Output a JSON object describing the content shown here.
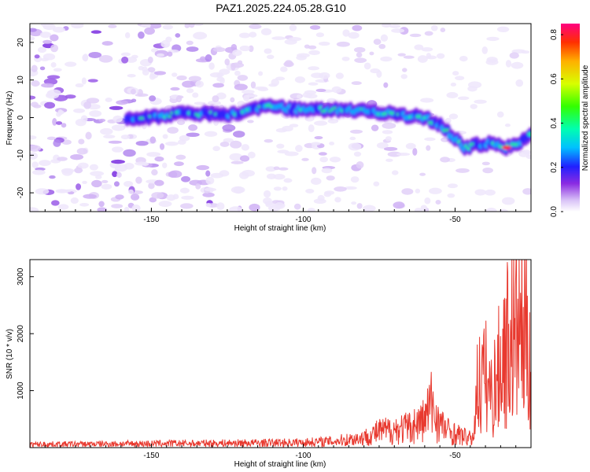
{
  "title": "PAZ1.2025.224.05.28.G10",
  "chart_data": [
    {
      "type": "heatmap",
      "xlabel": "Height of straight line (km)",
      "ylabel": "Frequency (Hz)",
      "xlim": [
        -190,
        -25
      ],
      "ylim": [
        -25,
        25
      ],
      "x_ticks": [
        "-150",
        "-100",
        "-50"
      ],
      "y_ticks": [
        "-20",
        "-10",
        "0",
        "10",
        "20"
      ],
      "grid": false,
      "ridge": {
        "x": [
          -158,
          -150,
          -140,
          -132,
          -125,
          -112,
          -100,
          -90,
          -80,
          -70,
          -60,
          -53,
          -47,
          -42,
          -38,
          -33,
          -29,
          -25
        ],
        "frequency_hz": [
          0,
          0,
          1,
          1,
          0.5,
          3,
          2,
          2,
          2,
          1,
          0,
          -3,
          -8,
          -7,
          -7,
          -8,
          -7,
          -4
        ]
      },
      "colorbar": {
        "label": "Normalized spectral amplitude",
        "ticks": [
          "0.0",
          "0.2",
          "0.4",
          "0.6",
          "0.8"
        ],
        "range": [
          0,
          0.85
        ]
      }
    },
    {
      "type": "line",
      "xlabel": "Height of straight line (km)",
      "ylabel": "SNR (10 * v/v)",
      "xlim": [
        -190,
        -25
      ],
      "ylim": [
        0,
        3300
      ],
      "x_ticks": [
        "-150",
        "-100",
        "-50"
      ],
      "y_ticks": [
        "1000",
        "2000",
        "3000"
      ],
      "color": "#e8392f",
      "grid": false,
      "envelope": {
        "x": [
          -190,
          -170,
          -150,
          -130,
          -110,
          -100,
          -90,
          -80,
          -75,
          -70,
          -65,
          -60,
          -58,
          -55,
          -52,
          -50,
          -46,
          -44,
          -43,
          -40,
          -38,
          -35,
          -33,
          -30,
          -28,
          -25
        ],
        "snr": [
          80,
          90,
          100,
          110,
          120,
          130,
          160,
          250,
          400,
          450,
          500,
          700,
          1100,
          600,
          400,
          350,
          250,
          200,
          1500,
          1800,
          1300,
          2100,
          2600,
          2900,
          3000,
          2500
        ]
      }
    }
  ]
}
